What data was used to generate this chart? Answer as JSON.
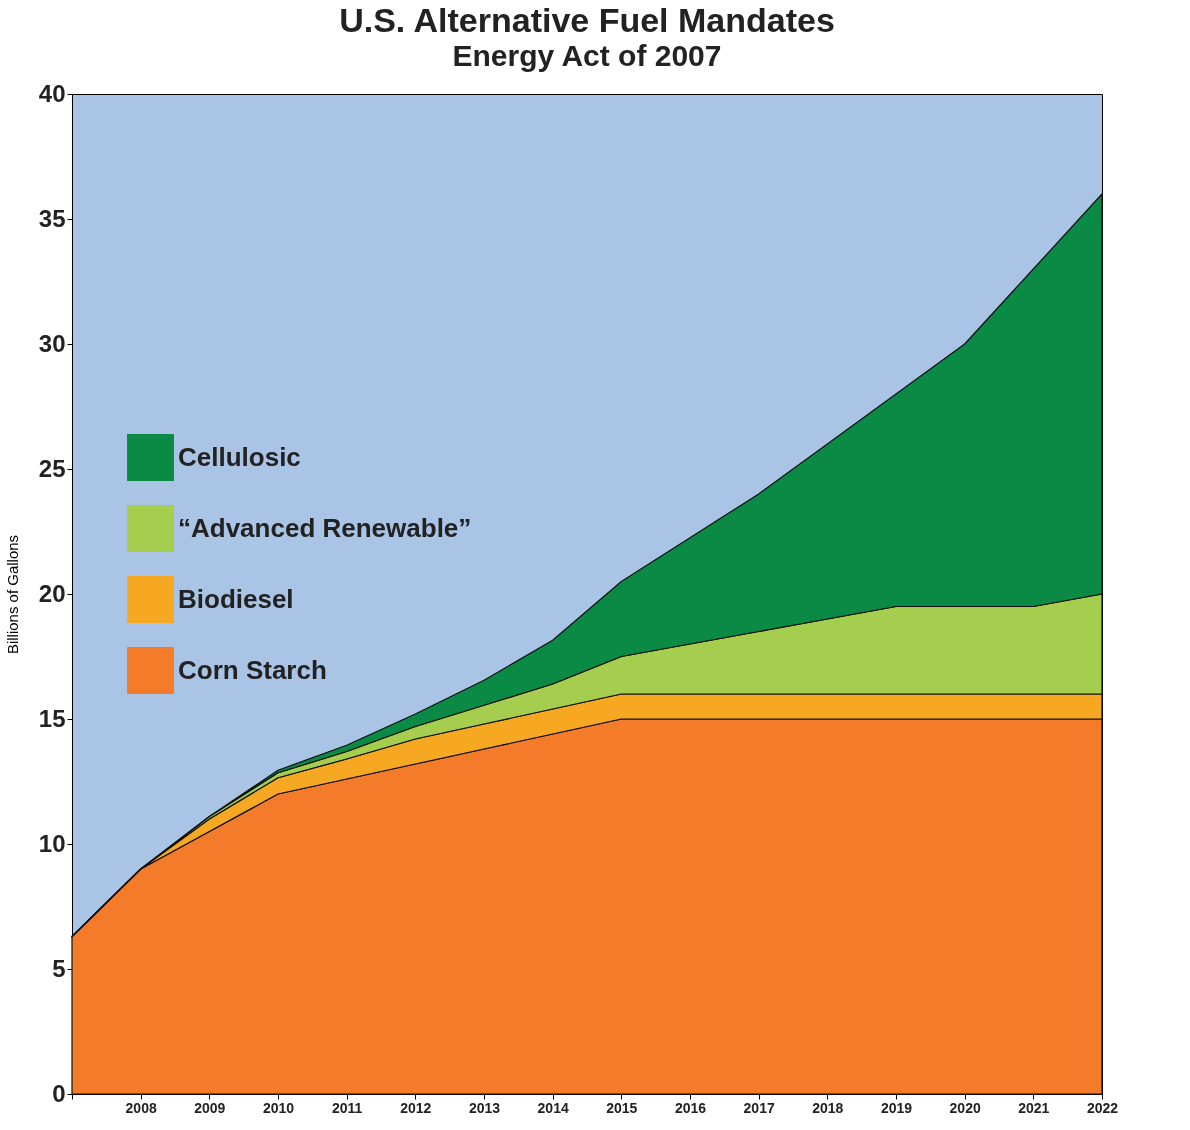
{
  "chart_data": {
    "type": "area",
    "title": "U.S. Alternative Fuel Mandates",
    "subtitle": "Energy Act of 2007",
    "ylabel": "Billions of Gallons",
    "stacked": true,
    "x": [
      2007,
      2008,
      2009,
      2010,
      2011,
      2012,
      2013,
      2014,
      2015,
      2016,
      2017,
      2018,
      2019,
      2020,
      2021,
      2022
    ],
    "series": [
      {
        "name": "Corn Starch",
        "color": "#f47b29",
        "values": [
          6.3,
          9.0,
          10.5,
          12.0,
          12.6,
          13.2,
          13.8,
          14.4,
          15,
          15,
          15,
          15,
          15,
          15,
          15,
          15
        ]
      },
      {
        "name": "Biodiesel",
        "color": "#f7a823",
        "values": [
          0,
          0,
          0.5,
          0.65,
          0.8,
          1.0,
          1.0,
          1.0,
          1.0,
          1.0,
          1.0,
          1.0,
          1.0,
          1.0,
          1.0,
          1.0
        ]
      },
      {
        "name": "“Advanced Renewable”",
        "color": "#a5cd4e",
        "values": [
          0,
          0,
          0.1,
          0.2,
          0.3,
          0.5,
          0.75,
          1.0,
          1.5,
          2.0,
          2.5,
          3.0,
          3.5,
          3.5,
          3.5,
          4.0
        ]
      },
      {
        "name": "Cellulosic",
        "color": "#0a8a45",
        "values": [
          0,
          0,
          0,
          0.1,
          0.25,
          0.5,
          1.0,
          1.75,
          3.0,
          4.25,
          5.5,
          7.0,
          8.5,
          10.5,
          13.5,
          16.0
        ]
      }
    ],
    "xlim": [
      2007,
      2022
    ],
    "xticks": [
      {
        "value": 2007,
        "label": null
      },
      2008,
      2009,
      2010,
      2011,
      2012,
      2013,
      2014,
      2015,
      2016,
      2017,
      2018,
      2019,
      2020,
      2021,
      2022
    ],
    "ylim": [
      0,
      40
    ],
    "yticks": [
      0,
      5,
      10,
      15,
      20,
      25,
      30,
      35,
      40
    ],
    "grid": false,
    "legend": "left"
  }
}
